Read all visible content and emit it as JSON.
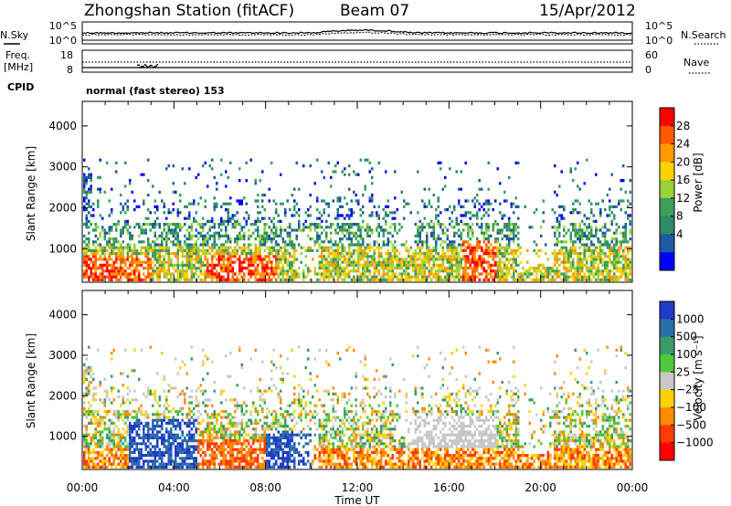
{
  "header": {
    "station": "Zhongshan Station (fitACF)",
    "beam": "Beam 07",
    "date": "15/Apr/2012"
  },
  "top_panel": {
    "left_label": "N.Sky",
    "left_ticks": [
      "10^5",
      "10^0"
    ],
    "right_ticks": [
      "10^5",
      "10^0"
    ],
    "right_label": "N.Search"
  },
  "freq_panel": {
    "left_label_1": "Freq.",
    "left_label_2": "[MHz]",
    "left_ticks": [
      "18",
      "8"
    ],
    "right_ticks": [
      "60",
      "0"
    ],
    "right_label": "Nave"
  },
  "cpid": {
    "label": "CPID",
    "value": "normal (fast stereo) 153"
  },
  "chart_data": [
    {
      "type": "heatmap",
      "name": "power",
      "ylabel": "Slant Range [km]",
      "xlabel": "",
      "ylim": [
        180,
        4600
      ],
      "yticks": [
        "4000",
        "3000",
        "2000",
        "1000"
      ],
      "xlim_hours": [
        0,
        24
      ],
      "xticks": [],
      "colorbar": {
        "label": "Power [dB]",
        "ticks": [
          "28",
          "24",
          "20",
          "16",
          "12",
          "8",
          "4"
        ],
        "colors": [
          "#ff0000",
          "#ff5a00",
          "#ff9a00",
          "#ffd200",
          "#9ad23a",
          "#3aa05a",
          "#2f8a6a",
          "#1e5aa0",
          "#0000ff"
        ]
      }
    },
    {
      "type": "heatmap",
      "name": "velocity",
      "ylabel": "Slant Range [km]",
      "xlabel": "Time UT",
      "ylim": [
        180,
        4600
      ],
      "yticks": [
        "4000",
        "3000",
        "2000",
        "1000"
      ],
      "xlim_hours": [
        0,
        24
      ],
      "xticks": [
        "00:00",
        "04:00",
        "08:00",
        "12:00",
        "16:00",
        "20:00",
        "00:00"
      ],
      "colorbar": {
        "label": "Velocity [m s⁻¹]",
        "ticks": [
          "1000",
          "500",
          "100",
          "25",
          "−25",
          "−100",
          "−500",
          "−1000"
        ],
        "colors": [
          "#1e3cc8",
          "#2a6ea8",
          "#3a9a6a",
          "#4fc83a",
          "#c8c8c8",
          "#ffd200",
          "#ff8c00",
          "#ff3c00",
          "#ff0000"
        ]
      }
    }
  ]
}
